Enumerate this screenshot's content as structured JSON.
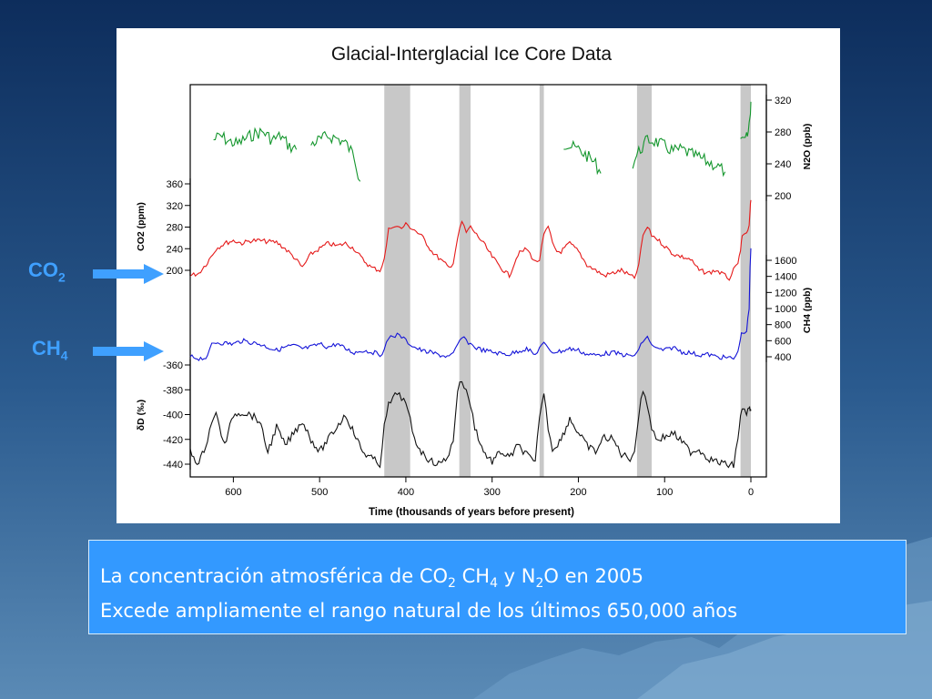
{
  "colors": {
    "co2": "#e51919",
    "ch4": "#1414d8",
    "n2o": "#14962d",
    "dD": "#111111",
    "interglacial_band": "#c8c8c8",
    "side_label": "#3fa0ff",
    "note_bg": "#3399ff"
  },
  "side_labels": [
    {
      "main": "CO",
      "sub": "2"
    },
    {
      "main": "CH",
      "sub": "4"
    }
  ],
  "note": {
    "line1": {
      "prefix": "La concentración atmosférica de CO",
      "sub1": "2",
      "mid1": " CH",
      "sub2": "4",
      "mid2": " y N",
      "sub3": "2",
      "suffix": "O en 2005"
    },
    "line2": "Excede ampliamente el rango natural de los últimos 650,000 años"
  },
  "chart_data": {
    "type": "line",
    "title": "Glacial-Interglacial Ice Core Data",
    "xlabel": "Time (thousands of years before present)",
    "xlim": [
      650,
      0
    ],
    "x_ticks": [
      600,
      500,
      400,
      300,
      200,
      100,
      0
    ],
    "interglacial_bands": [
      [
        425,
        395
      ],
      [
        338,
        325
      ],
      [
        245,
        240
      ],
      [
        132,
        115
      ],
      [
        12,
        0
      ]
    ],
    "series": [
      {
        "key": "n2o",
        "axis": "right",
        "ylabel": "N2O (ppb)",
        "ylim": [
          160,
          330
        ],
        "ticks": [
          200,
          240,
          280,
          320
        ],
        "segments": [
          {
            "x": [
              623,
              615,
              605,
              595,
              585,
              575,
              565,
              555,
              545,
              535,
              527
            ],
            "y": [
              270,
              275,
              268,
              265,
              272,
              278,
              280,
              270,
              275,
              262,
              258
            ]
          },
          {
            "x": [
              510,
              500,
              490,
              480,
              470,
              460,
              453
            ],
            "y": [
              265,
              270,
              275,
              272,
              266,
              250,
              218
            ]
          },
          {
            "x": [
              217,
              210,
              200,
              190,
              180,
              174
            ],
            "y": [
              265,
              262,
              258,
              250,
              240,
              228
            ]
          },
          {
            "x": [
              137,
              130,
              120,
              110,
              100,
              90,
              80,
              70,
              60,
              50,
              40,
              30
            ],
            "y": [
              240,
              255,
              270,
              268,
              262,
              256,
              258,
              252,
              248,
              242,
              238,
              230
            ]
          },
          {
            "x": [
              12,
              8,
              5,
              3,
              1,
              0
            ],
            "y": [
              265,
              268,
              272,
              280,
              300,
              318
            ]
          }
        ]
      },
      {
        "key": "co2",
        "axis": "left",
        "ylabel": "CO2 (ppm)",
        "ylim": [
          180,
          370
        ],
        "ticks": [
          200,
          240,
          280,
          320,
          360
        ],
        "x": [
          650,
          640,
          630,
          620,
          610,
          600,
          590,
          580,
          570,
          560,
          550,
          540,
          530,
          520,
          510,
          500,
          490,
          480,
          470,
          460,
          450,
          440,
          430,
          425,
          420,
          415,
          410,
          405,
          400,
          395,
          390,
          380,
          370,
          360,
          350,
          345,
          340,
          335,
          330,
          325,
          320,
          310,
          300,
          290,
          280,
          270,
          260,
          250,
          245,
          240,
          235,
          230,
          225,
          220,
          210,
          200,
          190,
          180,
          170,
          160,
          150,
          140,
          135,
          130,
          125,
          120,
          115,
          110,
          100,
          90,
          80,
          70,
          60,
          50,
          40,
          30,
          25,
          20,
          15,
          12,
          10,
          5,
          2,
          1,
          0
        ],
        "y": [
          190,
          195,
          215,
          240,
          250,
          255,
          250,
          255,
          255,
          253,
          252,
          240,
          225,
          205,
          230,
          240,
          250,
          245,
          250,
          240,
          220,
          205,
          200,
          220,
          275,
          283,
          280,
          278,
          285,
          280,
          275,
          260,
          235,
          220,
          205,
          215,
          260,
          290,
          270,
          280,
          270,
          250,
          225,
          205,
          190,
          230,
          240,
          215,
          220,
          265,
          280,
          250,
          235,
          235,
          250,
          235,
          210,
          200,
          190,
          195,
          200,
          190,
          185,
          210,
          265,
          280,
          265,
          260,
          245,
          230,
          225,
          220,
          200,
          195,
          200,
          190,
          185,
          200,
          210,
          240,
          260,
          270,
          280,
          310,
          330
        ]
      },
      {
        "key": "ch4",
        "axis": "right",
        "ylabel": "CH4 (ppb)",
        "ylim": [
          300,
          1700
        ],
        "ticks": [
          400,
          600,
          800,
          1000,
          1200,
          1400,
          1600
        ],
        "x": [
          650,
          640,
          630,
          625,
          620,
          610,
          600,
          590,
          580,
          570,
          560,
          550,
          540,
          530,
          520,
          510,
          500,
          490,
          480,
          470,
          460,
          450,
          440,
          430,
          425,
          420,
          415,
          410,
          405,
          400,
          395,
          390,
          380,
          370,
          360,
          350,
          345,
          340,
          335,
          330,
          325,
          320,
          310,
          300,
          290,
          280,
          270,
          260,
          250,
          245,
          240,
          235,
          230,
          220,
          210,
          200,
          190,
          180,
          170,
          160,
          150,
          140,
          135,
          130,
          125,
          120,
          115,
          110,
          100,
          90,
          80,
          70,
          60,
          50,
          40,
          30,
          20,
          15,
          12,
          10,
          5,
          2,
          1,
          0
        ],
        "y": [
          400,
          380,
          390,
          560,
          580,
          570,
          560,
          600,
          580,
          560,
          520,
          480,
          520,
          540,
          500,
          520,
          560,
          520,
          560,
          500,
          450,
          480,
          460,
          430,
          480,
          640,
          660,
          670,
          650,
          600,
          560,
          520,
          470,
          450,
          420,
          400,
          430,
          550,
          640,
          600,
          560,
          520,
          480,
          460,
          440,
          430,
          470,
          500,
          420,
          520,
          560,
          500,
          460,
          470,
          500,
          480,
          430,
          420,
          440,
          450,
          430,
          410,
          420,
          480,
          600,
          640,
          560,
          500,
          480,
          520,
          460,
          450,
          420,
          430,
          400,
          390,
          380,
          450,
          650,
          700,
          720,
          1000,
          1500,
          1750
        ]
      },
      {
        "key": "dD",
        "axis": "left",
        "ylabel": "δD (‰)",
        "ylim": [
          -445,
          -355
        ],
        "ticks": [
          -360,
          -380,
          -400,
          -420,
          -440
        ],
        "x": [
          650,
          640,
          630,
          625,
          620,
          610,
          600,
          590,
          580,
          570,
          560,
          550,
          540,
          530,
          520,
          510,
          500,
          490,
          480,
          470,
          460,
          450,
          440,
          430,
          425,
          420,
          415,
          410,
          405,
          400,
          395,
          390,
          380,
          370,
          360,
          350,
          345,
          340,
          335,
          330,
          325,
          320,
          310,
          300,
          290,
          280,
          270,
          260,
          250,
          245,
          240,
          235,
          230,
          220,
          210,
          200,
          190,
          180,
          170,
          160,
          150,
          140,
          135,
          130,
          125,
          120,
          115,
          110,
          100,
          90,
          80,
          70,
          60,
          50,
          40,
          30,
          20,
          15,
          12,
          10,
          5,
          2,
          1,
          0
        ],
        "y": [
          -430,
          -440,
          -420,
          -405,
          -400,
          -425,
          -400,
          -398,
          -400,
          -405,
          -430,
          -410,
          -425,
          -415,
          -405,
          -420,
          -430,
          -420,
          -410,
          -400,
          -415,
          -430,
          -435,
          -440,
          -410,
          -392,
          -388,
          -382,
          -386,
          -392,
          -405,
          -420,
          -432,
          -438,
          -440,
          -432,
          -420,
          -380,
          -372,
          -382,
          -392,
          -410,
          -430,
          -438,
          -430,
          -435,
          -425,
          -432,
          -440,
          -400,
          -383,
          -410,
          -428,
          -420,
          -403,
          -415,
          -425,
          -430,
          -418,
          -420,
          -432,
          -435,
          -430,
          -400,
          -380,
          -392,
          -410,
          -420,
          -418,
          -415,
          -422,
          -430,
          -428,
          -435,
          -438,
          -440,
          -441,
          -418,
          -403,
          -395,
          -398,
          -396,
          -395,
          -397
        ]
      }
    ]
  }
}
